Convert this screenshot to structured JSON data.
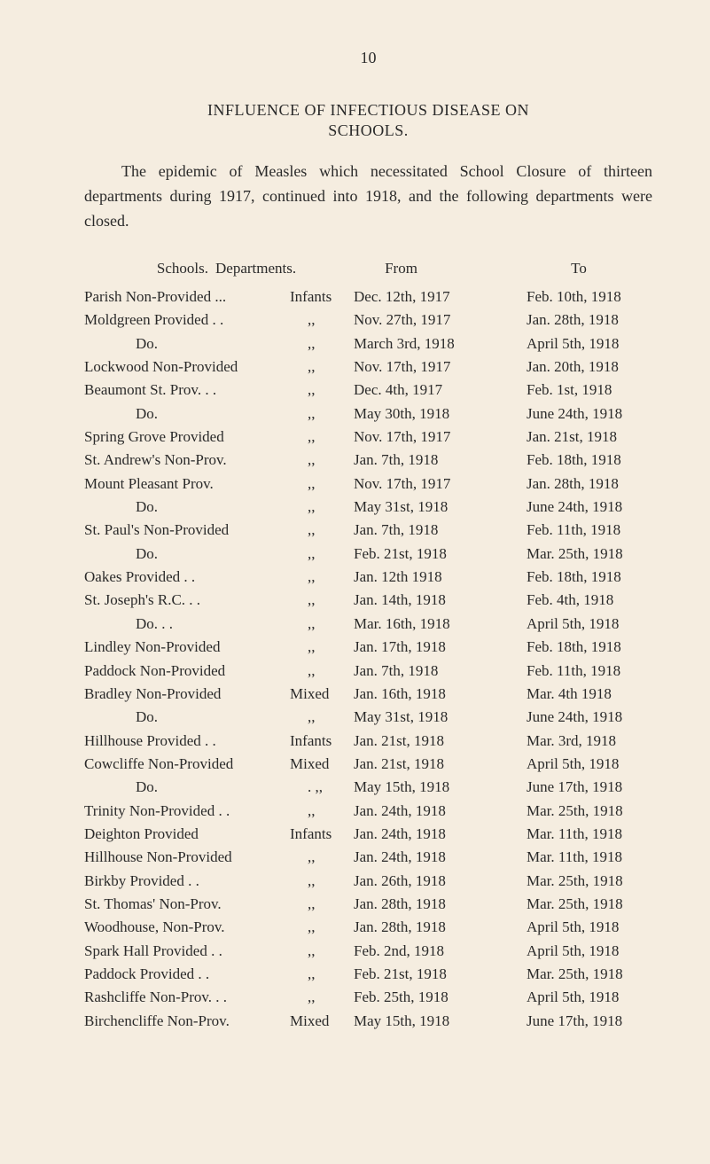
{
  "page_number": "10",
  "heading_line_1": "INFLUENCE OF INFECTIOUS DISEASE ON",
  "heading_line_2": "SCHOOLS.",
  "intro_paragraph": "The epidemic of Measles which necessitated School Closure of thirteen departments during 1917, continued into 1918, and the following departments were closed.",
  "column_headers": {
    "schools": "Schools.",
    "departments": "Departments.",
    "from": "From",
    "to": "To"
  },
  "rows": [
    {
      "school": "Parish Non-Provided ...",
      "dept": "Infants",
      "from": "Dec. 12th, 1917",
      "to": "Feb. 10th, 1918"
    },
    {
      "school": "Moldgreen Provided   . .",
      "dept": ",,",
      "from": "Nov. 27th, 1917",
      "to": "Jan. 28th, 1918"
    },
    {
      "school": "Do.",
      "school_indent": true,
      "dept": ",,",
      "from": "March 3rd, 1918",
      "to": "April 5th, 1918"
    },
    {
      "school": "Lockwood Non-Provided",
      "dept": ",,",
      "from": "Nov. 17th, 1917",
      "to": "Jan. 20th, 1918"
    },
    {
      "school": "Beaumont St. Prov.   . .",
      "dept": ",,",
      "from": "Dec. 4th, 1917",
      "to": "Feb. 1st, 1918"
    },
    {
      "school": "Do.",
      "school_indent": true,
      "dept": ",,",
      "from": "May 30th, 1918",
      "to": "June 24th, 1918"
    },
    {
      "school": "Spring Grove Provided",
      "dept": ",,",
      "from": "Nov. 17th, 1917",
      "to": "Jan. 21st, 1918"
    },
    {
      "school": "St. Andrew's Non-Prov.",
      "dept": ",,",
      "from": "Jan. 7th, 1918",
      "to": "Feb. 18th, 1918"
    },
    {
      "school": "Mount Pleasant Prov.",
      "dept": ",,",
      "from": "Nov. 17th, 1917",
      "to": "Jan. 28th, 1918"
    },
    {
      "school": "Do.",
      "school_indent": true,
      "dept": ",,",
      "from": "May 31st, 1918",
      "to": "June 24th, 1918"
    },
    {
      "school": "St. Paul's Non-Provided",
      "dept": ",,",
      "from": "Jan. 7th, 1918",
      "to": "Feb. 11th, 1918"
    },
    {
      "school": "Do.",
      "school_indent": true,
      "dept": ",,",
      "from": "Feb. 21st, 1918",
      "to": "Mar. 25th, 1918"
    },
    {
      "school": "Oakes Provided         . .",
      "dept": ",,",
      "from": "Jan. 12th 1918",
      "to": "Feb. 18th, 1918"
    },
    {
      "school": "St. Joseph's R.C.      . .",
      "dept": ",,",
      "from": "Jan. 14th, 1918",
      "to": "Feb. 4th, 1918"
    },
    {
      "school": "Do.",
      "school_indent": true,
      "dot_after": " . .",
      "dept": ",,",
      "from": "Mar. 16th, 1918",
      "to": "April 5th, 1918"
    },
    {
      "school": "Lindley Non-Provided",
      "dept": ",,",
      "from": "Jan. 17th, 1918",
      "to": "Feb. 18th, 1918"
    },
    {
      "school": "Paddock Non-Provided",
      "dept": ",,",
      "from": "Jan. 7th, 1918",
      "to": "Feb. 11th, 1918"
    },
    {
      "school": "Bradley Non-Provided",
      "dept": "Mixed",
      "from": "Jan. 16th, 1918",
      "to": "Mar. 4th 1918"
    },
    {
      "school": "Do.",
      "school_indent": true,
      "dept": ",,",
      "from": "May 31st, 1918",
      "to": "June 24th, 1918"
    },
    {
      "school": "Hillhouse Provided    . .",
      "dept": "Infants",
      "from": "Jan. 21st, 1918",
      "to": "Mar. 3rd, 1918"
    },
    {
      "school": "Cowcliffe Non-Provided",
      "dept": "Mixed",
      "from": "Jan. 21st, 1918",
      "to": "April 5th, 1918"
    },
    {
      "school": "Do.",
      "school_indent": true,
      "dept": ". ,,",
      "from": "May 15th, 1918",
      "to": "June 17th, 1918"
    },
    {
      "school": "Trinity Non-Provided . .",
      "dept": ",,",
      "from": "Jan. 24th, 1918",
      "to": "Mar. 25th, 1918"
    },
    {
      "school": "Deighton Provided",
      "dept": "Infants",
      "from": "Jan. 24th, 1918",
      "to": "Mar. 11th, 1918"
    },
    {
      "school": "Hillhouse Non-Provided",
      "dept": ",,",
      "from": "Jan. 24th, 1918",
      "to": "Mar. 11th, 1918"
    },
    {
      "school": "Birkby Provided        . .",
      "dept": ",,",
      "from": "Jan. 26th, 1918",
      "to": "Mar. 25th, 1918"
    },
    {
      "school": "St. Thomas' Non-Prov.",
      "dept": ",,",
      "from": "Jan. 28th, 1918",
      "to": "Mar. 25th, 1918"
    },
    {
      "school": "Woodhouse, Non-Prov.",
      "dept": ",,",
      "from": "Jan. 28th, 1918",
      "to": "April 5th, 1918"
    },
    {
      "school": "Spark Hall Provided  . .",
      "dept": ",,",
      "from": "Feb. 2nd, 1918",
      "to": "April 5th, 1918"
    },
    {
      "school": "Paddock Provided     . .",
      "dept": ",,",
      "from": "Feb. 21st, 1918",
      "to": "Mar. 25th, 1918"
    },
    {
      "school": "Rashcliffe Non-Prov. . .",
      "dept": ",,",
      "from": "Feb. 25th, 1918",
      "to": "April 5th, 1918"
    },
    {
      "school": "Birchencliffe Non-Prov.",
      "dept": "Mixed",
      "from": "May 15th, 1918",
      "to": "June 17th, 1918"
    }
  ]
}
